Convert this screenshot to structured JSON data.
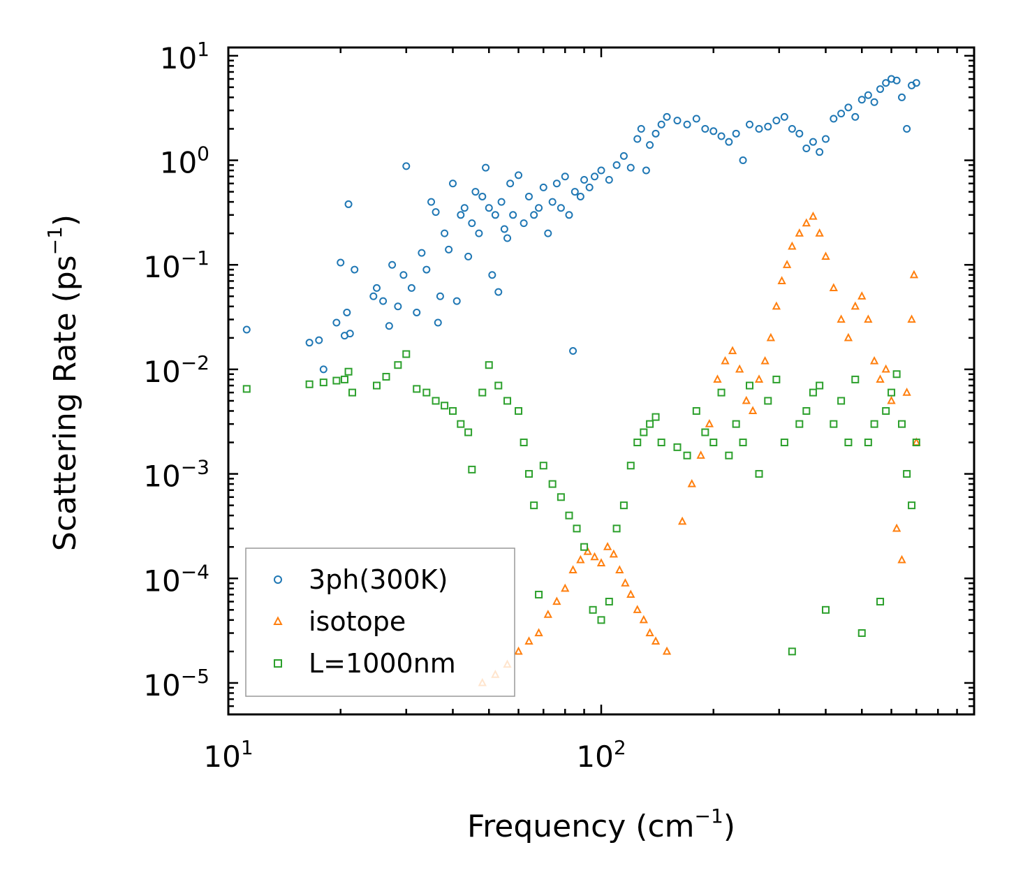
{
  "chart_data": {
    "type": "scatter",
    "xscale": "log",
    "yscale": "log",
    "xlabel": "Frequency (cm",
    "xlabel_unit_exp": "−1",
    "xlabel_close": ")",
    "ylabel": "Scattering Rate (ps",
    "ylabel_unit_exp": "−1",
    "ylabel_close": ")",
    "xlim": [
      10,
      1000
    ],
    "ylim": [
      5e-06,
      12
    ],
    "x_ticks": [
      {
        "value": 10,
        "base": "10",
        "exp": "1"
      },
      {
        "value": 100,
        "base": "10",
        "exp": "2"
      }
    ],
    "y_ticks": [
      {
        "value": 10,
        "base": "10",
        "exp": "1"
      },
      {
        "value": 1,
        "base": "10",
        "exp": "0"
      },
      {
        "value": 0.1,
        "base": "10",
        "exp": "−1"
      },
      {
        "value": 0.01,
        "base": "10",
        "exp": "−2"
      },
      {
        "value": 0.001,
        "base": "10",
        "exp": "−3"
      },
      {
        "value": 0.0001,
        "base": "10",
        "exp": "−4"
      },
      {
        "value": 1e-05,
        "base": "10",
        "exp": "−5"
      }
    ],
    "legend_position": "bottom-left",
    "series": [
      {
        "name": "3ph(300K)",
        "marker": "circle",
        "color": "#1f77b4",
        "points": [
          [
            11.2,
            0.024
          ],
          [
            16.5,
            0.018
          ],
          [
            17.5,
            0.019
          ],
          [
            18.0,
            0.01
          ],
          [
            19.5,
            0.028
          ],
          [
            20.0,
            0.105
          ],
          [
            20.5,
            0.021
          ],
          [
            20.8,
            0.035
          ],
          [
            21.0,
            0.38
          ],
          [
            21.2,
            0.022
          ],
          [
            21.8,
            0.09
          ],
          [
            24.5,
            0.05
          ],
          [
            25.0,
            0.06
          ],
          [
            26.0,
            0.045
          ],
          [
            27.0,
            0.026
          ],
          [
            27.5,
            0.1
          ],
          [
            28.5,
            0.04
          ],
          [
            29.5,
            0.08
          ],
          [
            30.0,
            0.88
          ],
          [
            31.0,
            0.06
          ],
          [
            32.0,
            0.035
          ],
          [
            33.0,
            0.13
          ],
          [
            34.0,
            0.09
          ],
          [
            35.0,
            0.4
          ],
          [
            36.0,
            0.32
          ],
          [
            36.5,
            0.028
          ],
          [
            37.0,
            0.05
          ],
          [
            38.0,
            0.2
          ],
          [
            39.0,
            0.14
          ],
          [
            40.0,
            0.6
          ],
          [
            41.0,
            0.045
          ],
          [
            42.0,
            0.3
          ],
          [
            43.0,
            0.35
          ],
          [
            44.0,
            0.12
          ],
          [
            45.0,
            0.25
          ],
          [
            46.0,
            0.5
          ],
          [
            47.0,
            0.2
          ],
          [
            48.0,
            0.45
          ],
          [
            49.0,
            0.85
          ],
          [
            50.0,
            0.35
          ],
          [
            51.0,
            0.08
          ],
          [
            52.0,
            0.3
          ],
          [
            53.0,
            0.055
          ],
          [
            54.0,
            0.4
          ],
          [
            55.0,
            0.22
          ],
          [
            56.0,
            0.18
          ],
          [
            57.0,
            0.6
          ],
          [
            58.0,
            0.3
          ],
          [
            60.0,
            0.72
          ],
          [
            62.0,
            0.25
          ],
          [
            64.0,
            0.45
          ],
          [
            66.0,
            0.3
          ],
          [
            68.0,
            0.35
          ],
          [
            70.0,
            0.55
          ],
          [
            72.0,
            0.2
          ],
          [
            74.0,
            0.4
          ],
          [
            76.0,
            0.6
          ],
          [
            78.0,
            0.35
          ],
          [
            80.0,
            0.7
          ],
          [
            82.0,
            0.3
          ],
          [
            84.0,
            0.015
          ],
          [
            85.0,
            0.5
          ],
          [
            88.0,
            0.45
          ],
          [
            90.0,
            0.65
          ],
          [
            93.0,
            0.55
          ],
          [
            96.0,
            0.7
          ],
          [
            100.0,
            0.8
          ],
          [
            105.0,
            0.65
          ],
          [
            110.0,
            0.9
          ],
          [
            115.0,
            1.1
          ],
          [
            120.0,
            0.85
          ],
          [
            125.0,
            1.6
          ],
          [
            128.0,
            2.0
          ],
          [
            132.0,
            0.8
          ],
          [
            135.0,
            1.4
          ],
          [
            140.0,
            1.8
          ],
          [
            145.0,
            2.2
          ],
          [
            150.0,
            2.6
          ],
          [
            160.0,
            2.4
          ],
          [
            170.0,
            2.2
          ],
          [
            180.0,
            2.5
          ],
          [
            190.0,
            2.0
          ],
          [
            200.0,
            1.9
          ],
          [
            210.0,
            1.7
          ],
          [
            220.0,
            1.5
          ],
          [
            230.0,
            1.8
          ],
          [
            240.0,
            1.0
          ],
          [
            250.0,
            2.2
          ],
          [
            265.0,
            2.0
          ],
          [
            280.0,
            2.1
          ],
          [
            295.0,
            2.4
          ],
          [
            310.0,
            2.6
          ],
          [
            325.0,
            2.0
          ],
          [
            340.0,
            1.8
          ],
          [
            355.0,
            1.3
          ],
          [
            370.0,
            1.5
          ],
          [
            385.0,
            1.2
          ],
          [
            400.0,
            1.6
          ],
          [
            420.0,
            2.5
          ],
          [
            440.0,
            2.8
          ],
          [
            460.0,
            3.2
          ],
          [
            480.0,
            2.6
          ],
          [
            500.0,
            3.8
          ],
          [
            520.0,
            4.2
          ],
          [
            540.0,
            3.6
          ],
          [
            560.0,
            4.8
          ],
          [
            580.0,
            5.5
          ],
          [
            600.0,
            6.0
          ],
          [
            620.0,
            5.8
          ],
          [
            640.0,
            4.0
          ],
          [
            660.0,
            2.0
          ],
          [
            680.0,
            5.2
          ],
          [
            700.0,
            5.5
          ]
        ]
      },
      {
        "name": "isotope",
        "marker": "triangle",
        "color": "#ff7f0e",
        "points": [
          [
            48.0,
            1e-05
          ],
          [
            52.0,
            1.2e-05
          ],
          [
            56.0,
            1.5e-05
          ],
          [
            60.0,
            2e-05
          ],
          [
            64.0,
            2.5e-05
          ],
          [
            68.0,
            3e-05
          ],
          [
            72.0,
            4.5e-05
          ],
          [
            76.0,
            6e-05
          ],
          [
            80.0,
            8e-05
          ],
          [
            84.0,
            0.00012
          ],
          [
            88.0,
            0.00015
          ],
          [
            92.0,
            0.00018
          ],
          [
            96.0,
            0.00016
          ],
          [
            100.0,
            0.00014
          ],
          [
            104.0,
            0.0002
          ],
          [
            108.0,
            0.00017
          ],
          [
            112.0,
            0.00012
          ],
          [
            116.0,
            9e-05
          ],
          [
            120.0,
            7e-05
          ],
          [
            125.0,
            5e-05
          ],
          [
            130.0,
            4e-05
          ],
          [
            135.0,
            3e-05
          ],
          [
            140.0,
            2.5e-05
          ],
          [
            150.0,
            2e-05
          ],
          [
            165.0,
            0.00035
          ],
          [
            175.0,
            0.0008
          ],
          [
            185.0,
            0.0015
          ],
          [
            195.0,
            0.003
          ],
          [
            205.0,
            0.008
          ],
          [
            215.0,
            0.012
          ],
          [
            225.0,
            0.015
          ],
          [
            235.0,
            0.01
          ],
          [
            245.0,
            0.005
          ],
          [
            255.0,
            0.004
          ],
          [
            265.0,
            0.008
          ],
          [
            275.0,
            0.012
          ],
          [
            285.0,
            0.02
          ],
          [
            295.0,
            0.04
          ],
          [
            305.0,
            0.07
          ],
          [
            315.0,
            0.1
          ],
          [
            325.0,
            0.15
          ],
          [
            340.0,
            0.2
          ],
          [
            355.0,
            0.25
          ],
          [
            370.0,
            0.29
          ],
          [
            385.0,
            0.2
          ],
          [
            400.0,
            0.12
          ],
          [
            420.0,
            0.06
          ],
          [
            440.0,
            0.03
          ],
          [
            460.0,
            0.02
          ],
          [
            480.0,
            0.04
          ],
          [
            500.0,
            0.05
          ],
          [
            520.0,
            0.03
          ],
          [
            540.0,
            0.012
          ],
          [
            560.0,
            0.008
          ],
          [
            580.0,
            0.01
          ],
          [
            600.0,
            0.005
          ],
          [
            620.0,
            0.0003
          ],
          [
            640.0,
            0.00015
          ],
          [
            660.0,
            0.006
          ],
          [
            680.0,
            0.03
          ],
          [
            690.0,
            0.08
          ],
          [
            700.0,
            0.002
          ]
        ]
      },
      {
        "name": "L=1000nm",
        "marker": "square",
        "color": "#2ca02c",
        "points": [
          [
            11.2,
            0.0065
          ],
          [
            16.5,
            0.0072
          ],
          [
            18.0,
            0.0075
          ],
          [
            19.5,
            0.0078
          ],
          [
            20.5,
            0.008
          ],
          [
            21.0,
            0.0095
          ],
          [
            21.5,
            0.006
          ],
          [
            25.0,
            0.007
          ],
          [
            26.5,
            0.0085
          ],
          [
            28.5,
            0.011
          ],
          [
            30.0,
            0.014
          ],
          [
            32.0,
            0.0065
          ],
          [
            34.0,
            0.006
          ],
          [
            36.0,
            0.005
          ],
          [
            38.0,
            0.0045
          ],
          [
            40.0,
            0.004
          ],
          [
            42.0,
            0.003
          ],
          [
            44.0,
            0.0025
          ],
          [
            45.0,
            0.0011
          ],
          [
            48.0,
            0.006
          ],
          [
            50.0,
            0.011
          ],
          [
            53.0,
            0.007
          ],
          [
            56.0,
            0.005
          ],
          [
            60.0,
            0.004
          ],
          [
            62.0,
            0.002
          ],
          [
            64.0,
            0.001
          ],
          [
            66.0,
            0.0005
          ],
          [
            68.0,
            7e-05
          ],
          [
            70.0,
            0.0012
          ],
          [
            74.0,
            0.0008
          ],
          [
            78.0,
            0.0006
          ],
          [
            82.0,
            0.0004
          ],
          [
            86.0,
            0.0003
          ],
          [
            90.0,
            0.0002
          ],
          [
            95.0,
            5e-05
          ],
          [
            100.0,
            4e-05
          ],
          [
            105.0,
            6e-05
          ],
          [
            110.0,
            0.0003
          ],
          [
            115.0,
            0.0005
          ],
          [
            120.0,
            0.0012
          ],
          [
            125.0,
            0.002
          ],
          [
            130.0,
            0.0025
          ],
          [
            135.0,
            0.003
          ],
          [
            140.0,
            0.0035
          ],
          [
            145.0,
            0.002
          ],
          [
            160.0,
            0.0018
          ],
          [
            170.0,
            0.0015
          ],
          [
            180.0,
            0.004
          ],
          [
            190.0,
            0.0025
          ],
          [
            200.0,
            0.002
          ],
          [
            210.0,
            0.006
          ],
          [
            220.0,
            0.0015
          ],
          [
            230.0,
            0.003
          ],
          [
            240.0,
            0.002
          ],
          [
            250.0,
            0.007
          ],
          [
            265.0,
            0.001
          ],
          [
            280.0,
            0.005
          ],
          [
            295.0,
            0.008
          ],
          [
            310.0,
            0.002
          ],
          [
            325.0,
            2e-05
          ],
          [
            340.0,
            0.003
          ],
          [
            355.0,
            0.004
          ],
          [
            370.0,
            0.006
          ],
          [
            385.0,
            0.007
          ],
          [
            400.0,
            5e-05
          ],
          [
            420.0,
            0.003
          ],
          [
            440.0,
            0.005
          ],
          [
            460.0,
            0.002
          ],
          [
            480.0,
            0.008
          ],
          [
            500.0,
            3e-05
          ],
          [
            520.0,
            0.002
          ],
          [
            540.0,
            0.003
          ],
          [
            560.0,
            6e-05
          ],
          [
            580.0,
            0.004
          ],
          [
            600.0,
            0.006
          ],
          [
            620.0,
            0.009
          ],
          [
            640.0,
            0.003
          ],
          [
            660.0,
            0.001
          ],
          [
            680.0,
            0.0005
          ],
          [
            700.0,
            0.002
          ]
        ]
      }
    ]
  }
}
